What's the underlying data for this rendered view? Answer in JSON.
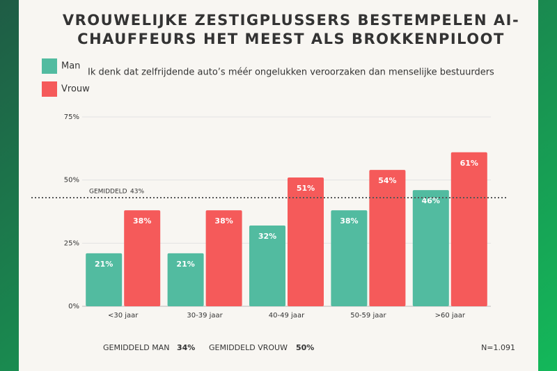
{
  "chart_data": {
    "type": "bar",
    "title": [
      "VROUWELIJKE ZESTIGPLUSSERS BESTEMPELEN AI-",
      "CHAUFFEURS HET MEEST ALS BROKKENPILOOT"
    ],
    "subtitle": "Ik denk dat zelfrijdende auto’s méér ongelukken veroorzaken dan menselijke bestuurders",
    "categories": [
      "<30 jaar",
      "30-39 jaar",
      "40-49 jaar",
      "50-59 jaar",
      ">60 jaar"
    ],
    "series": [
      {
        "name": "Man",
        "color": "#52bba0",
        "values": [
          21,
          21,
          32,
          38,
          46
        ],
        "value_labels": [
          "21%",
          "21%",
          "32%",
          "38%",
          "46%"
        ]
      },
      {
        "name": "Vrouw",
        "color": "#f55a5a",
        "values": [
          38,
          38,
          51,
          54,
          61
        ],
        "value_labels": [
          "38%",
          "38%",
          "51%",
          "54%",
          "61%"
        ]
      }
    ],
    "ylim": [
      0,
      75
    ],
    "yticks": [
      {
        "value": 0,
        "label": "0%"
      },
      {
        "value": 25,
        "label": "25%"
      },
      {
        "value": 50,
        "label": "50%"
      },
      {
        "value": 75,
        "label": "75%"
      }
    ],
    "grid": true,
    "average_line": {
      "label": "GEMIDDELD",
      "value": 43,
      "value_label": "43%"
    },
    "footer": [
      {
        "label": "GEMIDDELD MAN",
        "value_label": "34%"
      },
      {
        "label": "GEMIDDELD VROUW",
        "value_label": "50%"
      }
    ],
    "sample_size": "N=1.091"
  }
}
